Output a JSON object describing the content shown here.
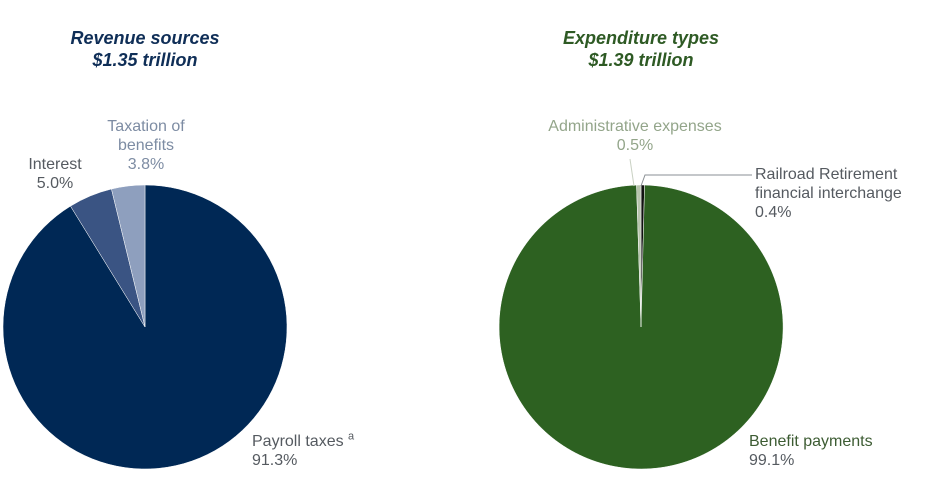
{
  "chart_data": [
    {
      "type": "pie",
      "title": "Revenue sources",
      "subtitle": "$1.35 trillion",
      "categories": [
        "Payroll taxes",
        "Interest",
        "Taxation of benefits"
      ],
      "values": [
        91.3,
        5.0,
        3.8
      ],
      "value_labels": [
        "91.3%",
        "5.0%",
        "3.8%"
      ],
      "footnote_markers": {
        "Payroll taxes": "a"
      },
      "colors": [
        "#002855",
        "#3a5483",
        "#8e9fbe"
      ],
      "start_angle": "12 o'clock",
      "direction": "clockwise",
      "legend": "none (direct labels)"
    },
    {
      "type": "pie",
      "title": "Expenditure types",
      "subtitle": "$1.39 trillion",
      "categories": [
        "Benefit payments",
        "Administrative expenses",
        "Railroad Retirement financial interchange"
      ],
      "values": [
        99.1,
        0.5,
        0.4
      ],
      "value_labels": [
        "99.1%",
        "0.5%",
        "0.4%"
      ],
      "colors": [
        "#2d6121",
        "#b7c4ad",
        "#111111"
      ],
      "start_angle": "12 o'clock",
      "direction": "clockwise",
      "legend": "none (direct labels with leader lines)"
    }
  ],
  "left": {
    "title": "Revenue sources",
    "subtitle": "$1.35 trillion",
    "labels": {
      "taxation_line1": "Taxation of",
      "taxation_line2": "benefits",
      "taxation_pct": "3.8%",
      "interest": "Interest",
      "interest_pct": "5.0%",
      "payroll": "Payroll taxes",
      "payroll_sup": "a",
      "payroll_pct": "91.3%"
    }
  },
  "right": {
    "title": "Expenditure types",
    "subtitle": "$1.39 trillion",
    "labels": {
      "admin": "Administrative expenses",
      "admin_pct": "0.5%",
      "rr_line1": "Railroad Retirement",
      "rr_line2": "financial interchange",
      "rr_pct": "0.4%",
      "benefit": "Benefit payments",
      "benefit_pct": "99.1%"
    }
  }
}
